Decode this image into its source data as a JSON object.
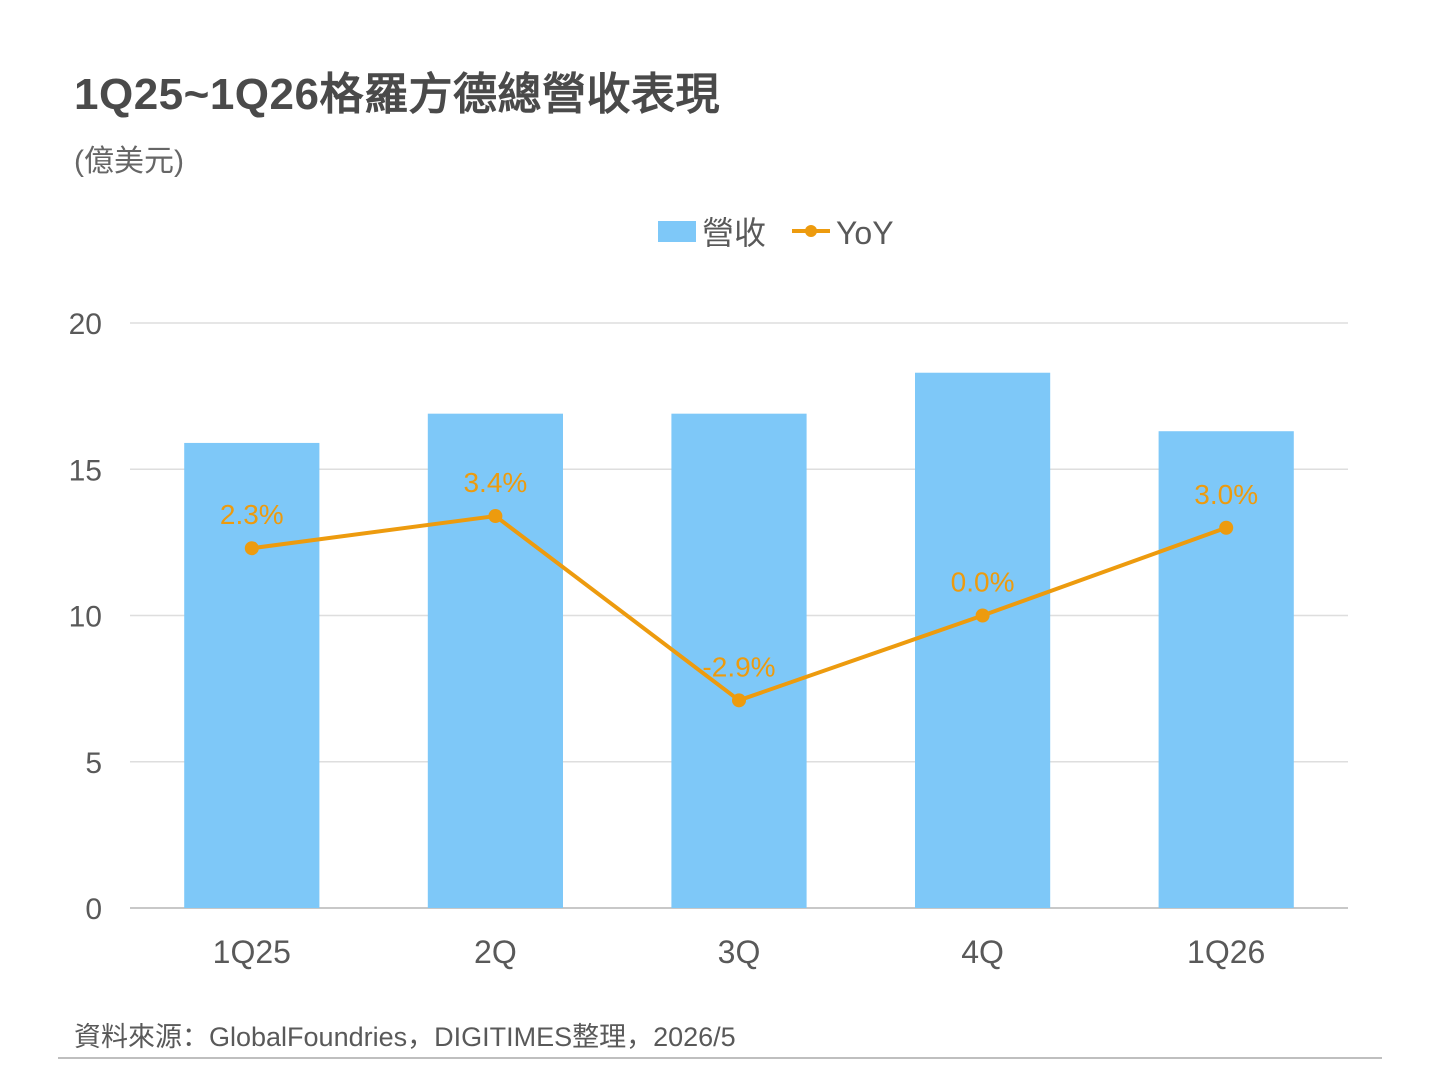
{
  "header": {
    "title": "1Q25~1Q26格羅方德總營收表現",
    "unit": "(億美元)"
  },
  "chart_data": {
    "type": "bar",
    "categories": [
      "1Q25",
      "2Q",
      "3Q",
      "4Q",
      "1Q26"
    ],
    "ylim": [
      0,
      20
    ],
    "yticks": [
      "0",
      "5",
      "10",
      "15",
      "20"
    ],
    "grid": true,
    "legend_placement": "top-center",
    "series": [
      {
        "name": "營收",
        "type": "bar",
        "values": [
          15.9,
          16.9,
          16.9,
          18.3,
          16.3
        ],
        "color": "#7ec8f8"
      },
      {
        "name": "YoY",
        "type": "line",
        "values": [
          2.3,
          3.4,
          -2.9,
          0.0,
          3.0
        ],
        "labels": [
          "2.3%",
          "3.4%",
          "-2.9%",
          "0.0%",
          "3.0%"
        ],
        "unit": "%",
        "color": "#ed9b0e"
      }
    ]
  },
  "footer": {
    "source": "資料來源：GlobalFoundries，DIGITIMES整理，2026/5"
  }
}
